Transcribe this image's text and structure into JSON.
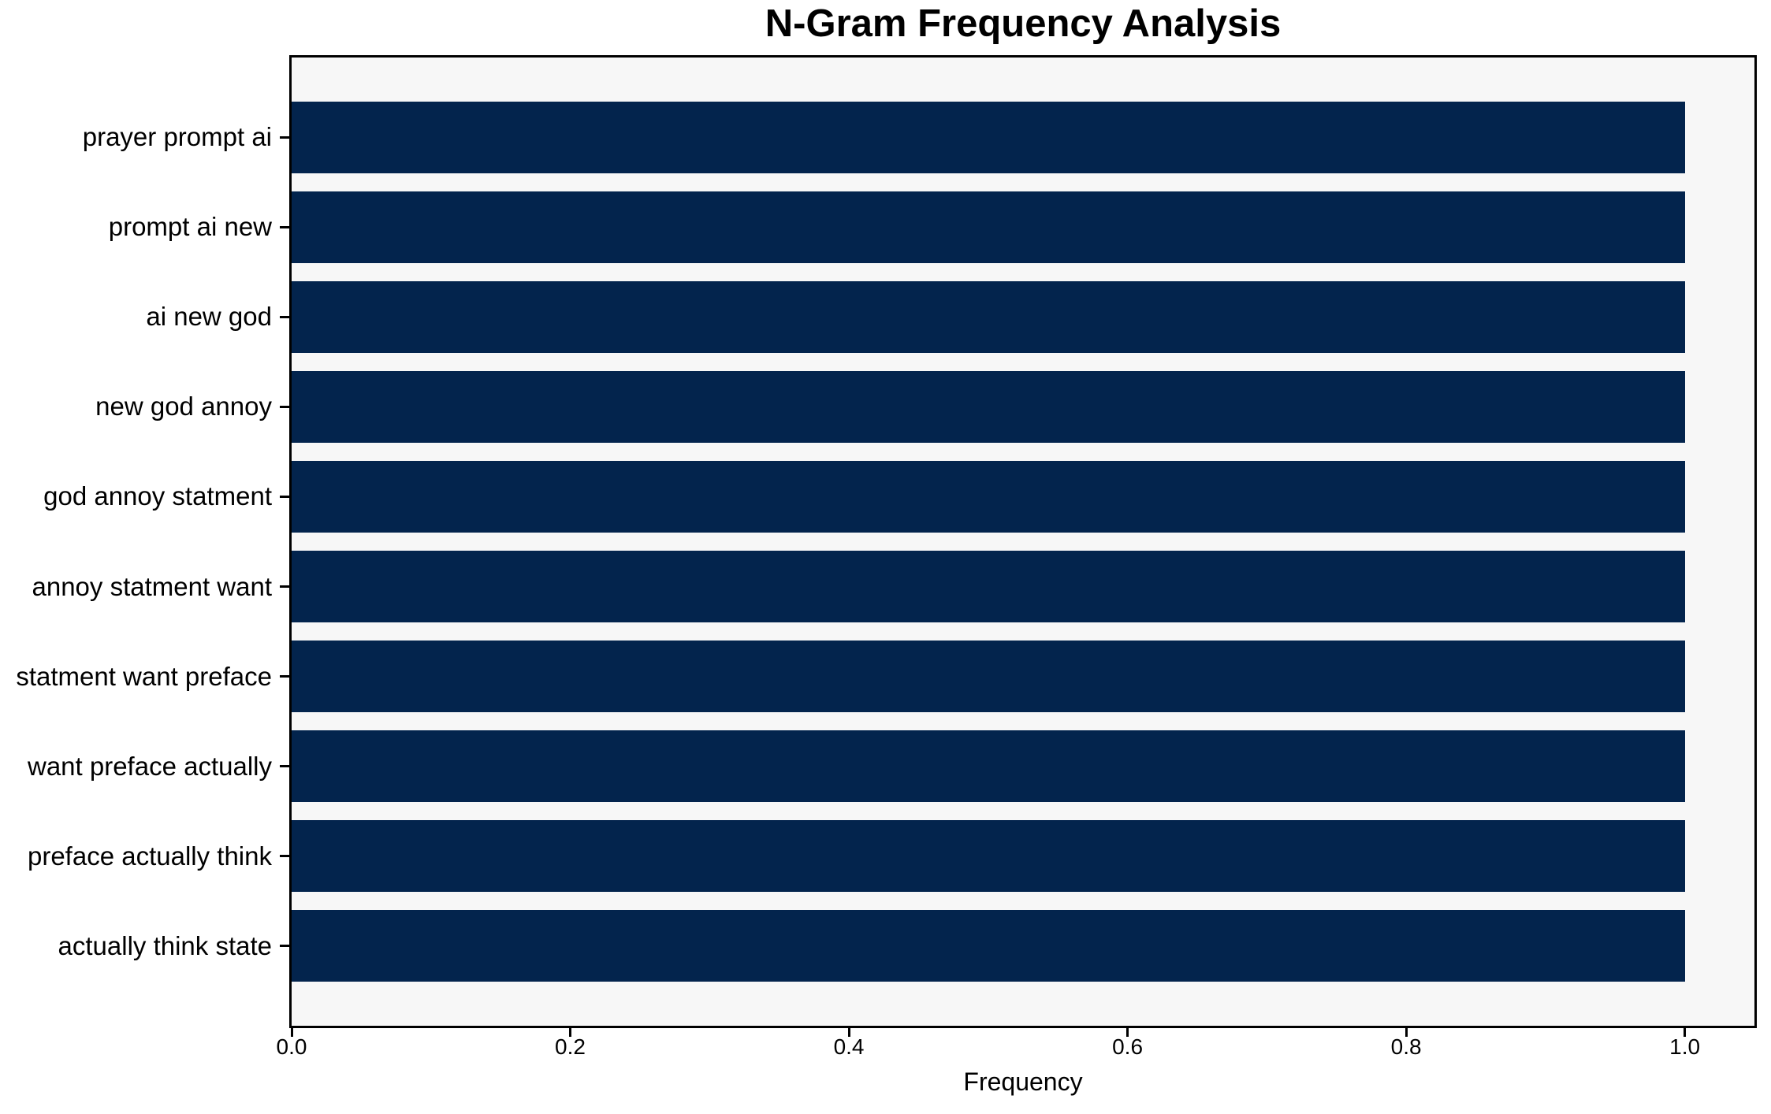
{
  "chart_data": {
    "type": "bar",
    "orientation": "horizontal",
    "title": "N-Gram Frequency Analysis",
    "xlabel": "Frequency",
    "ylabel": "",
    "categories": [
      "prayer prompt ai",
      "prompt ai new",
      "ai new god",
      "new god annoy",
      "god annoy statment",
      "annoy statment want",
      "statment want preface",
      "want preface actually",
      "preface actually think",
      "actually think state"
    ],
    "values": [
      1.0,
      1.0,
      1.0,
      1.0,
      1.0,
      1.0,
      1.0,
      1.0,
      1.0,
      1.0
    ],
    "xlim": [
      0,
      1.05
    ],
    "xtick_values": [
      0.0,
      0.2,
      0.4,
      0.6,
      0.8,
      1.0
    ],
    "xtick_labels": [
      "0.0",
      "0.2",
      "0.4",
      "0.6",
      "0.8",
      "1.0"
    ],
    "grid": false,
    "legend_position": "none",
    "bar_relative_height": 0.8,
    "colors": {
      "bar": "#03244d",
      "plot_background": "#f7f7f7",
      "figure_background": "#ffffff",
      "axis": "#000000",
      "text": "#000000"
    }
  }
}
